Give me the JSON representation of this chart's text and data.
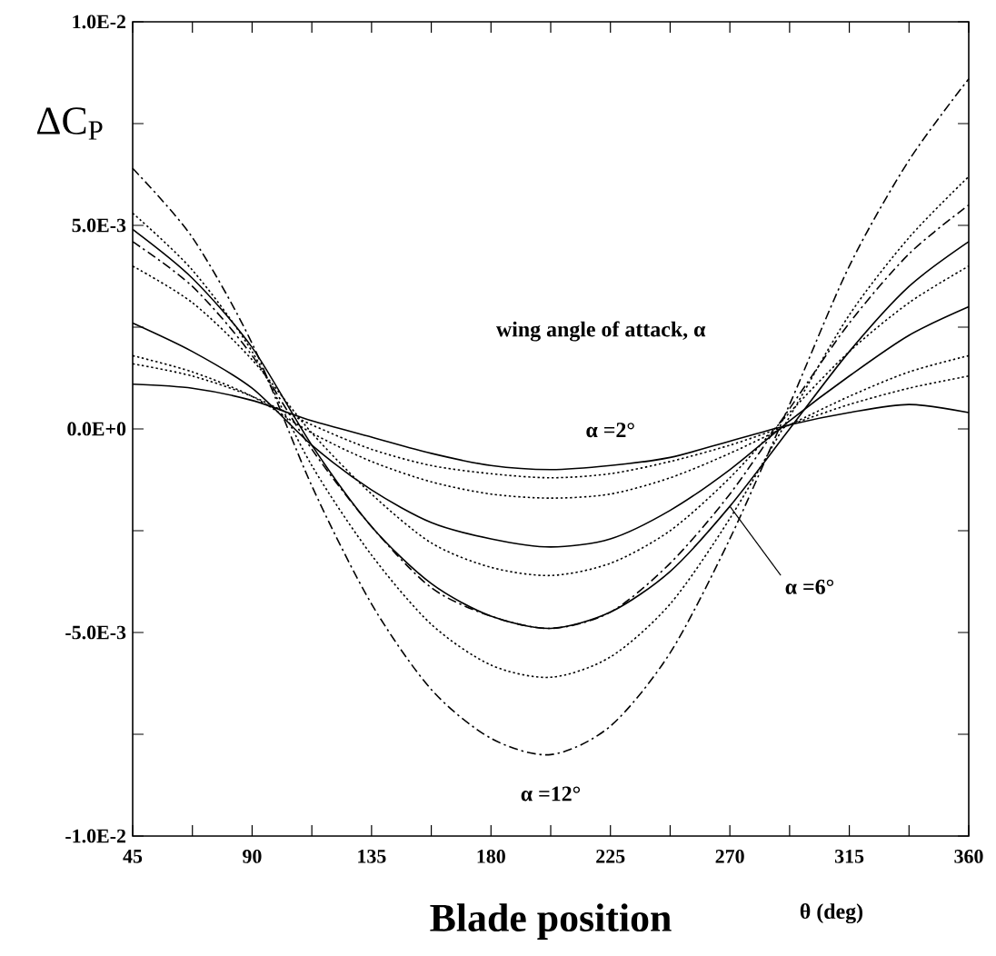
{
  "chart_data": {
    "type": "line",
    "xlabel": "Blade position",
    "ylabel": "ΔC$_{P}$",
    "x": [
      45,
      67.5,
      90,
      112.5,
      135,
      157.5,
      180,
      202.5,
      225,
      247.5,
      270,
      292.5,
      315,
      337.5,
      360
    ],
    "series": [
      {
        "color": "#000000",
        "line_style": "dashed",
        "values": [
          0.0064,
          0.0047,
          0.0021,
          -0.0014,
          -0.0043,
          -0.0064,
          -0.0076,
          -0.008,
          -0.0073,
          -0.0055,
          -0.0027,
          0.0006,
          0.004,
          0.0066,
          0.0086
        ]
      },
      {
        "color": "#000000",
        "line_style": "dotted",
        "values": [
          0.0053,
          0.0039,
          0.0019,
          -0.0009,
          -0.0031,
          -0.0048,
          -0.0058,
          -0.0061,
          -0.0056,
          -0.0043,
          -0.0022,
          0.0003,
          0.0028,
          0.0047,
          0.0062
        ]
      },
      {
        "color": "#000000",
        "line_style": "dashed",
        "values": [
          0.0046,
          0.0035,
          0.0018,
          -0.0005,
          -0.0024,
          -0.0039,
          -0.0046,
          -0.0049,
          -0.0045,
          -0.0033,
          -0.0016,
          0.0005,
          0.0026,
          0.0043,
          0.0055
        ]
      },
      {
        "color": "#000000",
        "line_style": "solid",
        "values": [
          0.0049,
          0.0037,
          0.002,
          -0.0004,
          -0.0024,
          -0.0038,
          -0.0046,
          -0.0049,
          -0.0045,
          -0.0035,
          -0.0019,
          0.0,
          0.0019,
          0.0035,
          0.0046
        ]
      },
      {
        "color": "#000000",
        "line_style": "dotted",
        "values": [
          0.004,
          0.0031,
          0.0017,
          -0.0001,
          -0.0016,
          -0.0028,
          -0.0034,
          -0.0036,
          -0.0033,
          -0.0025,
          -0.0012,
          0.0004,
          0.0019,
          0.0031,
          0.004
        ]
      },
      {
        "color": "#000000",
        "line_style": "solid",
        "values": [
          0.0026,
          0.0019,
          0.001,
          -0.0004,
          -0.0015,
          -0.0023,
          -0.0027,
          -0.0029,
          -0.0027,
          -0.002,
          -0.001,
          0.0002,
          0.0013,
          0.0023,
          0.003
        ]
      },
      {
        "color": "#000000",
        "line_style": "dotted",
        "values": [
          0.0018,
          0.0014,
          0.0008,
          -0.0001,
          -0.0008,
          -0.0013,
          -0.0016,
          -0.0017,
          -0.0016,
          -0.0012,
          -0.0006,
          0.0001,
          0.0008,
          0.0014,
          0.0018
        ]
      },
      {
        "color": "#000000",
        "line_style": "dotted",
        "values": [
          0.0016,
          0.0013,
          0.0008,
          0.0001,
          -0.0005,
          -0.0009,
          -0.0011,
          -0.0012,
          -0.0011,
          -0.0008,
          -0.0004,
          0.0001,
          0.0006,
          0.001,
          0.0013
        ]
      },
      {
        "color": "#000000",
        "line_style": "solid",
        "values": [
          0.0011,
          0.001,
          0.0007,
          0.0002,
          -0.0002,
          -0.0006,
          -0.0009,
          -0.001,
          -0.0009,
          -0.0007,
          -0.0003,
          0.0001,
          0.0004,
          0.0006,
          0.0004
        ]
      }
    ],
    "annotations": [
      "wing angle of attack, α",
      {
        "text": "α =2°",
        "x": 225,
        "y": -0.0009
      },
      {
        "text": "α =6°",
        "x": 270,
        "y": -0.0019
      },
      {
        "text": "α =12°",
        "x": 202.5,
        "y": -0.008
      },
      "θ (deg)"
    ],
    "xlim": [
      45,
      360
    ],
    "xticks": [
      45,
      {
        "value": 67.5,
        "label": null
      },
      90,
      {
        "value": 112.5,
        "label": null
      },
      135,
      {
        "value": 157.5,
        "label": null
      },
      180,
      {
        "value": 202.5,
        "label": null
      },
      225,
      {
        "value": 247.5,
        "label": null
      },
      270,
      {
        "value": 292.5,
        "label": null
      },
      315,
      {
        "value": 337.5,
        "label": null
      },
      360
    ],
    "ylim": [
      -0.01,
      0.01
    ],
    "yticks": [
      {
        "value": -0.01,
        "label": "-1.0E-2"
      },
      {
        "value": -0.0075,
        "label": null
      },
      {
        "value": -0.005,
        "label": "-5.0E-3"
      },
      {
        "value": -0.0025,
        "label": null
      },
      {
        "value": 0,
        "label": "0.0E+0"
      },
      {
        "value": 0.0025,
        "label": null
      },
      {
        "value": 0.005,
        "label": "5.0E-3"
      },
      {
        "value": 0.0075,
        "label": null
      },
      {
        "value": 0.01,
        "label": "1.0E-2"
      }
    ],
    "grid": false
  }
}
